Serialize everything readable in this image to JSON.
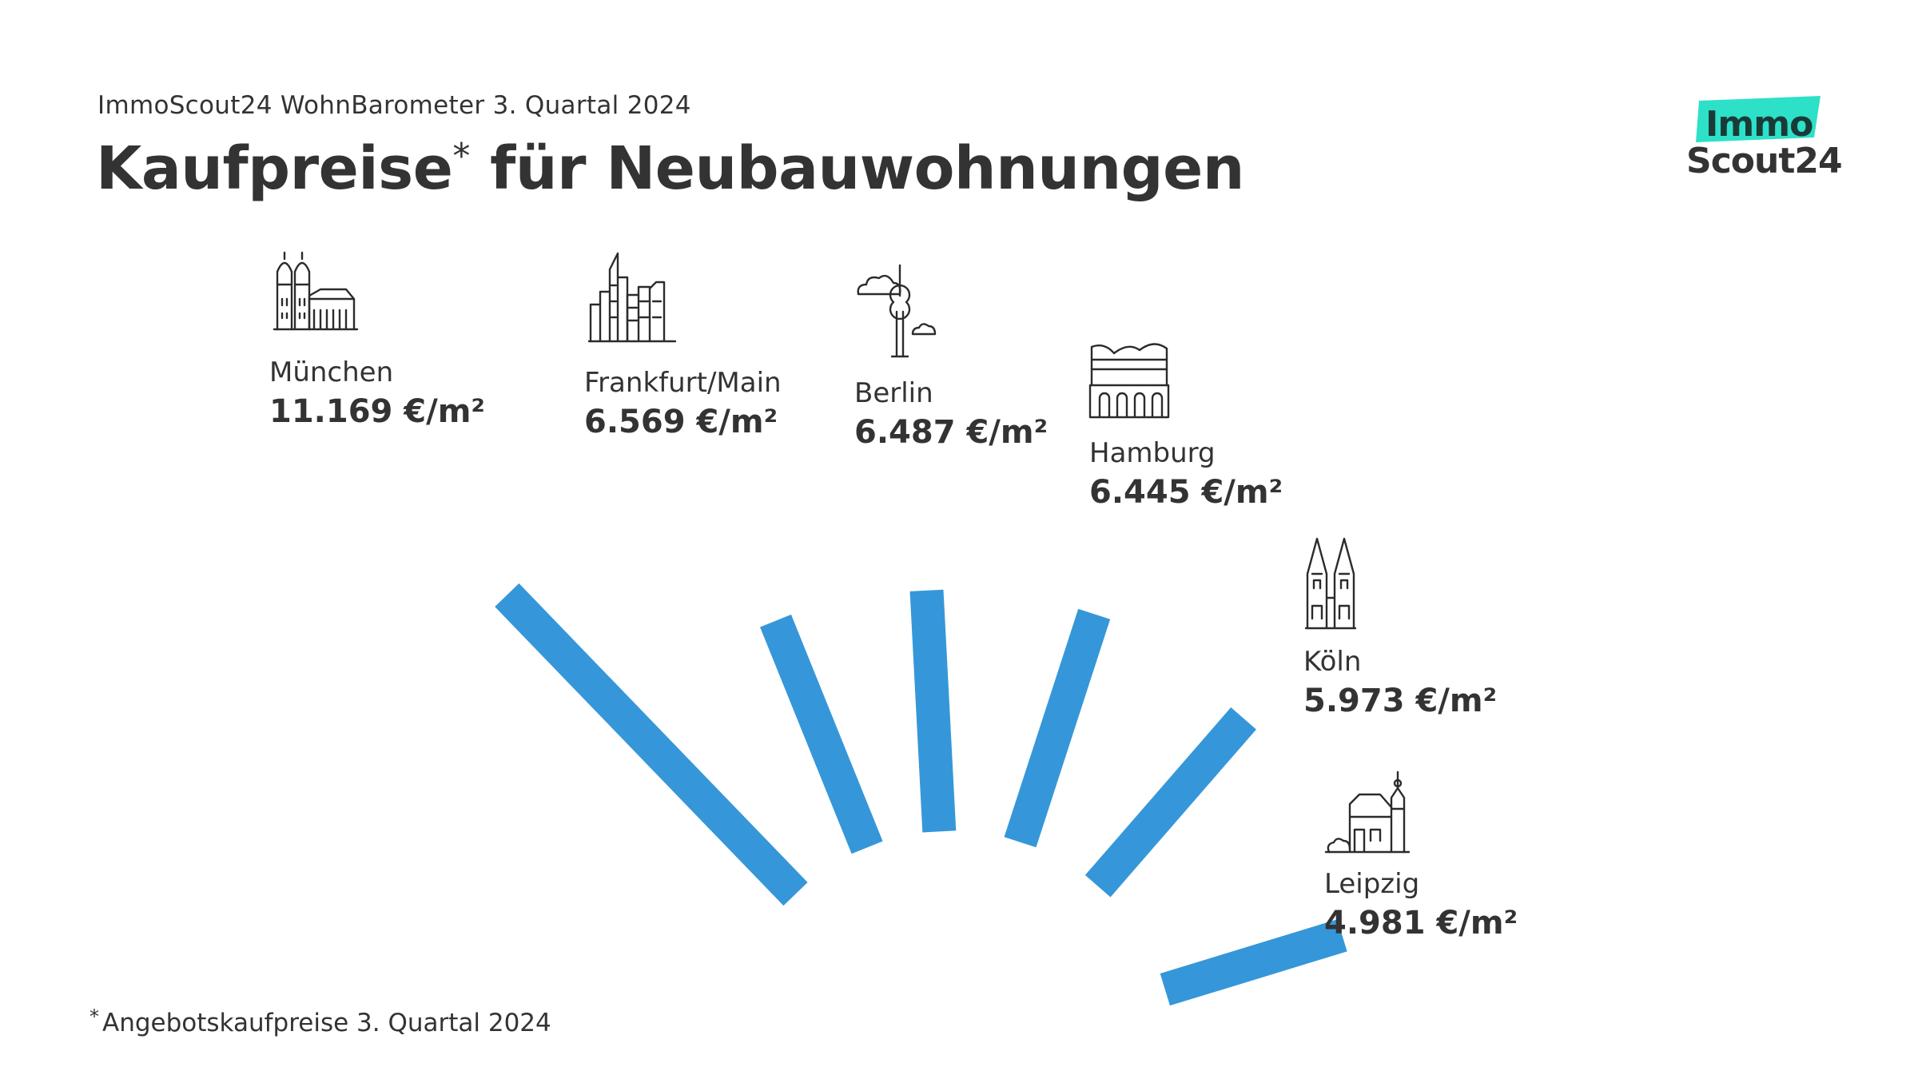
{
  "header": {
    "subtitle": "ImmoScout24 WohnBarometer 3. Quartal 2024",
    "title": "Kaufpreise",
    "title_mark": "*",
    "title_rest": " für Neubauwohnungen"
  },
  "logo": {
    "line1": "Immo",
    "line2": "Scout24",
    "accent_color": "#2de0c8"
  },
  "footnote": {
    "mark": "*",
    "text": "Angebotskaufpreise 3. Quartal 2024"
  },
  "chart_data": {
    "type": "radial-bar",
    "title": "Kaufpreise* für Neubauwohnungen",
    "unit": "€/m²",
    "bar_color": "#3597d9",
    "categories": [
      "München",
      "Frankfurt/Main",
      "Berlin",
      "Hamburg",
      "Köln",
      "Leipzig"
    ],
    "values": [
      11169,
      6569,
      6487,
      6445,
      5973,
      4981
    ],
    "value_labels": [
      "11.169 €/m²",
      "6.569 €/m²",
      "6.487 €/m²",
      "6.445 €/m²",
      "5.973 €/m²",
      "4.981 €/m²"
    ],
    "icons": [
      "frauenkirche-icon",
      "skyline-icon",
      "tv-tower-icon",
      "elbphilharmonie-icon",
      "cathedral-icon",
      "old-town-hall-icon"
    ]
  }
}
